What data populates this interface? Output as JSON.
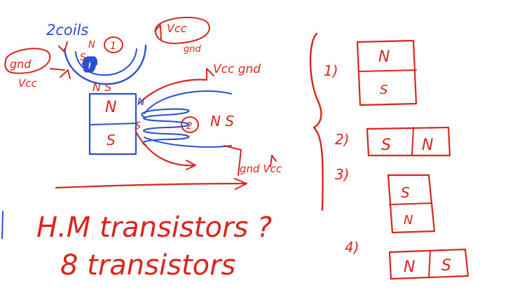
{
  "colors": {
    "ink_red": "#d9251d",
    "ink_blue": "#2b4fd1",
    "paper": "#ffffff"
  },
  "left_sketch": {
    "coil_group_label": "2coils",
    "coil1_number": "1",
    "coil1_left_tag": "gnd",
    "coil1_left_vcc": "Vcc",
    "coil1_right_tag": "Vcc",
    "coil1_right_gnd": "gnd",
    "coil1_pole_n_small": "N",
    "coil1_pole_s_small": "S",
    "coil1_bottom_poles": "N S",
    "coil2_number": "2",
    "coil2_top_labels": "Vcc gnd",
    "coil2_poles": "N S",
    "coil2_bottom_labels": "gnd Vcc",
    "magnet_top_pole": "N",
    "magnet_bottom_pole": "S",
    "magnet_side_n": "N",
    "magnet_side_s": "S"
  },
  "notes": {
    "line1": "H.M transistors ?",
    "line2": "8 transistors"
  },
  "positions_list": [
    {
      "number": "1)",
      "poles": [
        "N",
        "S"
      ],
      "orientation": "vertical"
    },
    {
      "number": "2)",
      "poles": [
        "S",
        "N"
      ],
      "orientation": "horizontal"
    },
    {
      "number": "3)",
      "poles": [
        "S",
        "N"
      ],
      "orientation": "vertical"
    },
    {
      "number": "4)",
      "poles": [
        "N",
        "S"
      ],
      "orientation": "horizontal"
    }
  ]
}
